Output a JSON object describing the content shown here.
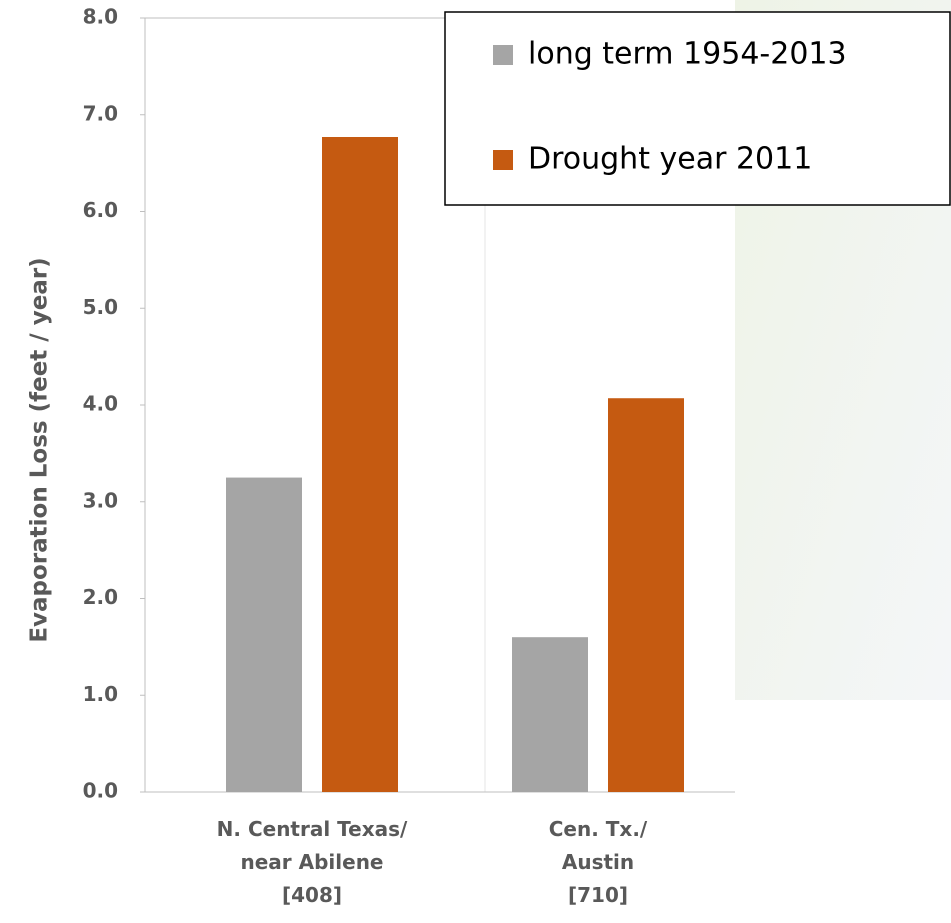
{
  "chart_data": {
    "type": "bar",
    "y_label": "Evaporation Loss (feet / year)",
    "categories": [
      "N. Central Texas/\nnear Abilene\n[408]",
      "Cen. Tx./\nAustin\n[710]"
    ],
    "series": [
      {
        "name": "long term 1954-2013",
        "color": "#a5a5a5",
        "values": [
          3.25,
          1.6
        ]
      },
      {
        "name": "Drought year 2011",
        "color": "#c55a11",
        "values": [
          6.77,
          4.07
        ]
      }
    ],
    "ylim": [
      0,
      8
    ],
    "yticks": [
      {
        "value": 0,
        "label": "0.0"
      },
      {
        "value": 1,
        "label": "1.0"
      },
      {
        "value": 2,
        "label": "2.0"
      },
      {
        "value": 3,
        "label": "3.0"
      },
      {
        "value": 4,
        "label": "4.0"
      },
      {
        "value": 5,
        "label": "5.0"
      },
      {
        "value": 6,
        "label": "6.0"
      },
      {
        "value": 7,
        "label": "7.0"
      },
      {
        "value": 8,
        "label": "8.0"
      }
    ],
    "legend": "upper right"
  }
}
